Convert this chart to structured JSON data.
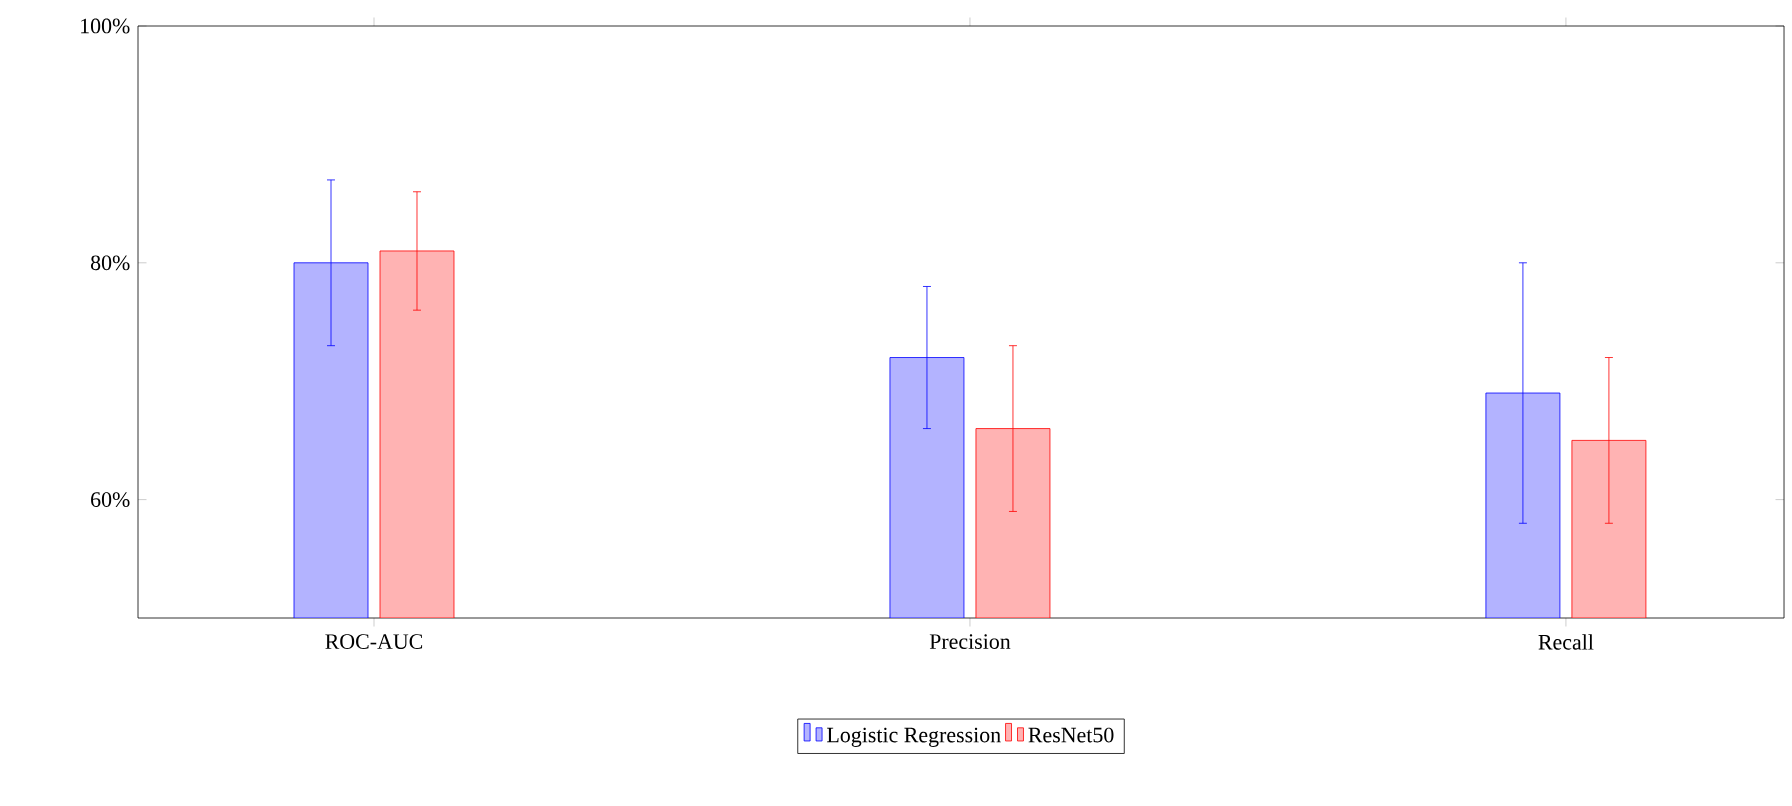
{
  "chart_data": {
    "type": "bar",
    "categories": [
      "ROC-AUC",
      "Precision",
      "Recall"
    ],
    "series": [
      {
        "name": "Logistic Regression",
        "color": "#b3b3ff",
        "values": [
          80,
          72,
          69
        ],
        "errors": [
          7,
          6,
          11
        ]
      },
      {
        "name": "ResNet50",
        "color": "#ffb3b3",
        "values": [
          81,
          66,
          65
        ],
        "errors": [
          5,
          7,
          7
        ]
      }
    ],
    "ylim": [
      50,
      100
    ],
    "yticks": [
      {
        "value": 60,
        "label": "60%"
      },
      {
        "value": 80,
        "label": "80%"
      },
      {
        "value": 100,
        "label": "100%"
      }
    ],
    "grid": false,
    "legend": "bottom"
  }
}
